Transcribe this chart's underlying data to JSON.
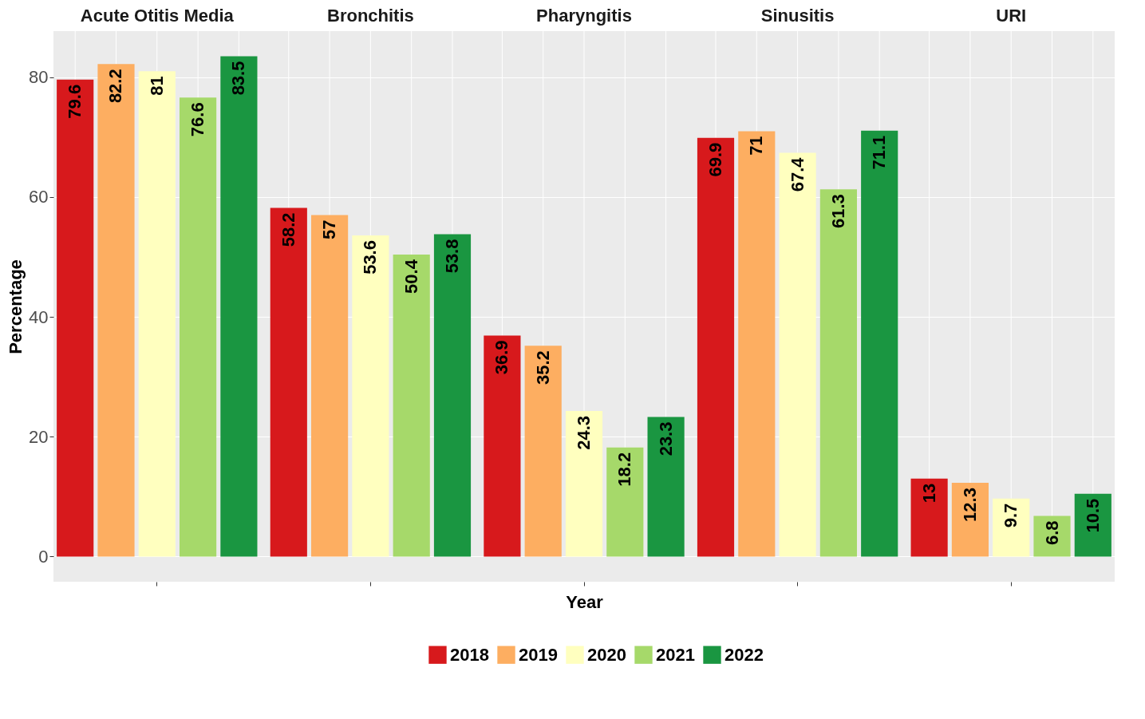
{
  "chart_data": {
    "type": "bar",
    "xlabel": "Year",
    "ylabel": "Percentage",
    "legend": "bottom",
    "categories": [
      "Acute Otitis Media",
      "Bronchitis",
      "Pharyngitis",
      "Sinusitis",
      "URI"
    ],
    "ylim": [
      -4.2,
      87.7
    ],
    "yticks": [
      0,
      20,
      40,
      60,
      80
    ],
    "grid": true,
    "data_labels": true,
    "series": [
      {
        "name": "2018",
        "color": "#d7191c",
        "values": [
          79.6,
          58.2,
          36.9,
          69.9,
          13
        ]
      },
      {
        "name": "2019",
        "color": "#fdae61",
        "values": [
          82.2,
          57,
          35.2,
          71,
          12.3
        ]
      },
      {
        "name": "2020",
        "color": "#ffffbf",
        "values": [
          81,
          53.6,
          24.3,
          67.4,
          9.7
        ]
      },
      {
        "name": "2021",
        "color": "#a6d96a",
        "values": [
          76.6,
          50.4,
          18.2,
          61.3,
          6.8
        ]
      },
      {
        "name": "2022",
        "color": "#1a9641",
        "values": [
          83.5,
          53.8,
          23.3,
          71.1,
          10.5
        ]
      }
    ]
  }
}
